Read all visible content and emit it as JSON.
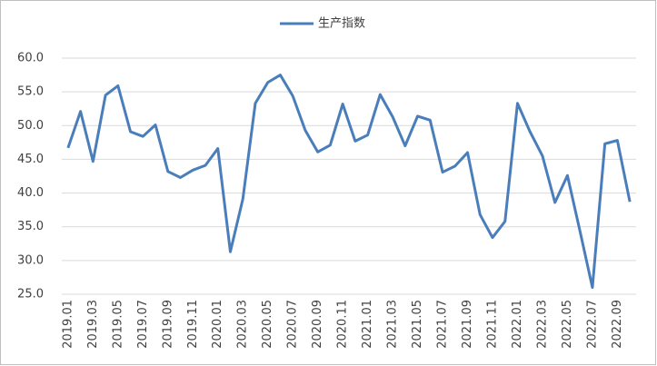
{
  "chart_data": {
    "type": "line",
    "categories": [
      "2019.01",
      null,
      "2019.03",
      null,
      "2019.05",
      null,
      "2019.07",
      null,
      "2019.09",
      null,
      "2019.11",
      null,
      "2020.01",
      null,
      "2020.03",
      null,
      "2020.05",
      null,
      "2020.07",
      null,
      "2020.09",
      null,
      "2020.11",
      null,
      "2021.01",
      null,
      "2021.03",
      null,
      "2021.05",
      null,
      "2021.07",
      null,
      "2021.09",
      null,
      "2021.11",
      null,
      "2022.01",
      null,
      "2022.03",
      null,
      "2022.05",
      null,
      "2022.07",
      null,
      "2022.09",
      null
    ],
    "series": [
      {
        "name": "生产指数",
        "color": "#4a7ebb",
        "values": [
          46.7,
          52.1,
          44.7,
          54.5,
          55.9,
          49.1,
          48.4,
          50.1,
          43.2,
          42.3,
          43.4,
          44.1,
          46.6,
          31.3,
          39.1,
          53.3,
          56.4,
          57.5,
          54.4,
          49.3,
          46.1,
          47.1,
          53.2,
          47.7,
          48.6,
          54.6,
          51.3,
          47.0,
          51.4,
          50.8,
          43.1,
          44.0,
          46.0,
          36.8,
          33.4,
          35.8,
          53.3,
          49.1,
          45.5,
          38.6,
          42.6,
          34.4,
          26.0,
          47.3,
          47.8,
          38.7
        ]
      }
    ],
    "ylim": [
      25,
      60
    ],
    "yticks": [
      {
        "value": 25,
        "label": "25.0"
      },
      {
        "value": 30,
        "label": "30.0"
      },
      {
        "value": 35,
        "label": "35.0"
      },
      {
        "value": 40,
        "label": "40.0"
      },
      {
        "value": 45,
        "label": "45.0"
      },
      {
        "value": 50,
        "label": "50.0"
      },
      {
        "value": 55,
        "label": "55.0"
      },
      {
        "value": 60,
        "label": "60.0"
      }
    ],
    "grid": true,
    "legend": "top"
  }
}
